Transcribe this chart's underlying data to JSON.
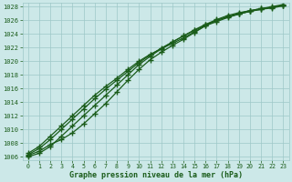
{
  "title": "",
  "xlabel": "Graphe pression niveau de la mer (hPa)",
  "xlim": [
    -0.5,
    23.5
  ],
  "ylim": [
    1005.5,
    1028.5
  ],
  "yticks": [
    1006,
    1008,
    1010,
    1012,
    1014,
    1016,
    1018,
    1020,
    1022,
    1024,
    1026,
    1028
  ],
  "xticks": [
    0,
    1,
    2,
    3,
    4,
    5,
    6,
    7,
    8,
    9,
    10,
    11,
    12,
    13,
    14,
    15,
    16,
    17,
    18,
    19,
    20,
    21,
    22,
    23
  ],
  "bg_color": "#cce8e8",
  "grid_color": "#9ec8c8",
  "line_color": "#1a5c1a",
  "line_width": 0.9,
  "marker": "+",
  "marker_size": 4,
  "marker_ew": 1.0,
  "series": [
    [
      1006.2,
      1006.8,
      1007.8,
      1008.5,
      1009.5,
      1010.8,
      1012.3,
      1013.8,
      1015.5,
      1017.2,
      1018.8,
      1020.2,
      1021.3,
      1022.3,
      1023.2,
      1024.2,
      1025.2,
      1026.0,
      1026.5,
      1026.9,
      1027.3,
      1027.6,
      1027.9,
      1028.2
    ],
    [
      1006.5,
      1007.5,
      1009.0,
      1010.5,
      1012.0,
      1013.5,
      1015.0,
      1016.3,
      1017.5,
      1018.8,
      1020.0,
      1021.0,
      1021.8,
      1022.6,
      1023.4,
      1024.3,
      1025.2,
      1025.8,
      1026.4,
      1026.9,
      1027.3,
      1027.6,
      1027.8,
      1028.1
    ],
    [
      1006.3,
      1007.2,
      1008.5,
      1010.0,
      1011.5,
      1013.0,
      1014.5,
      1015.9,
      1017.2,
      1018.5,
      1019.8,
      1020.9,
      1021.9,
      1022.8,
      1023.7,
      1024.5,
      1025.3,
      1026.0,
      1026.5,
      1027.0,
      1027.4,
      1027.7,
      1028.0,
      1028.3
    ],
    [
      1006.0,
      1006.5,
      1007.5,
      1009.0,
      1010.5,
      1012.0,
      1013.5,
      1015.0,
      1016.5,
      1018.0,
      1019.5,
      1020.7,
      1021.8,
      1022.8,
      1023.7,
      1024.6,
      1025.4,
      1026.1,
      1026.7,
      1027.1,
      1027.4,
      1027.7,
      1027.9,
      1028.2
    ]
  ]
}
